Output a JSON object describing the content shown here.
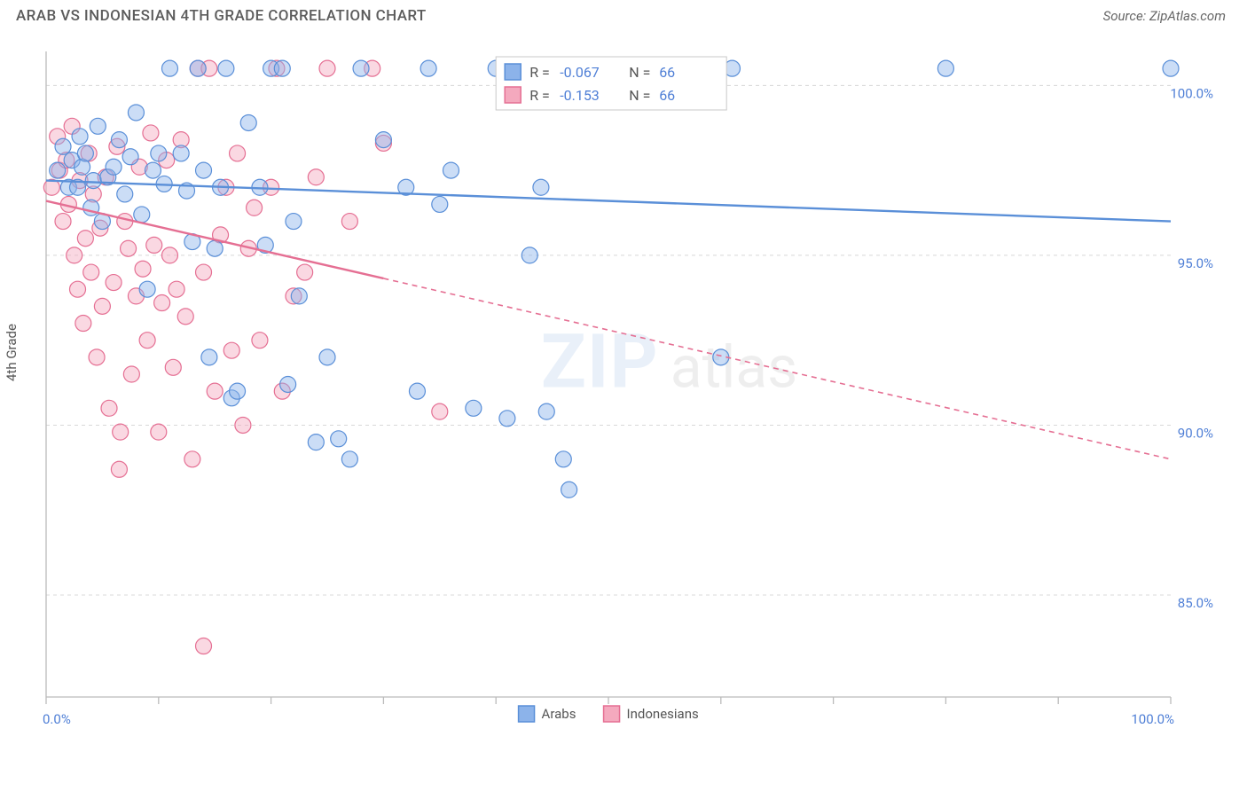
{
  "header": {
    "title": "ARAB VS INDONESIAN 4TH GRADE CORRELATION CHART",
    "source": "Source: ZipAtlas.com"
  },
  "y_axis_label": "4th Grade",
  "chart": {
    "type": "scatter",
    "xlim": [
      0,
      100
    ],
    "ylim": [
      82,
      101
    ],
    "x_ticks": [
      0,
      10,
      20,
      30,
      40,
      50,
      60,
      70,
      80,
      90,
      100
    ],
    "x_tick_labels": {
      "0": "0.0%",
      "100": "100.0%"
    },
    "y_ticks": [
      85,
      90,
      95,
      100
    ],
    "y_tick_labels": [
      "85.0%",
      "90.0%",
      "95.0%",
      "100.0%"
    ],
    "grid_color": "#d8d8d8",
    "axis_color": "#bbbbbb",
    "background_color": "#ffffff",
    "marker_radius": 9,
    "series": {
      "arabs": {
        "label": "Arabs",
        "color_fill": "#8cb3ea",
        "color_stroke": "#5a8fd8",
        "r_value": "-0.067",
        "n_value": "66",
        "trend": {
          "y_start": 97.2,
          "y_end": 96.0,
          "solid_until_x": 100
        },
        "points": [
          [
            1,
            97.5
          ],
          [
            1.5,
            98.2
          ],
          [
            2,
            97.0
          ],
          [
            2.3,
            97.8
          ],
          [
            2.8,
            97.0
          ],
          [
            3,
            98.5
          ],
          [
            3.2,
            97.6
          ],
          [
            3.5,
            98.0
          ],
          [
            4,
            96.4
          ],
          [
            4.2,
            97.2
          ],
          [
            4.6,
            98.8
          ],
          [
            5,
            96.0
          ],
          [
            5.5,
            97.3
          ],
          [
            6,
            97.6
          ],
          [
            6.5,
            98.4
          ],
          [
            7,
            96.8
          ],
          [
            7.5,
            97.9
          ],
          [
            8,
            99.2
          ],
          [
            8.5,
            96.2
          ],
          [
            9,
            94.0
          ],
          [
            9.5,
            97.5
          ],
          [
            10,
            98.0
          ],
          [
            10.5,
            97.1
          ],
          [
            11,
            100.5
          ],
          [
            12,
            98.0
          ],
          [
            12.5,
            96.9
          ],
          [
            13,
            95.4
          ],
          [
            13.5,
            100.5
          ],
          [
            14,
            97.5
          ],
          [
            14.5,
            92.0
          ],
          [
            15,
            95.2
          ],
          [
            15.5,
            97.0
          ],
          [
            16,
            100.5
          ],
          [
            16.5,
            90.8
          ],
          [
            17,
            91.0
          ],
          [
            18,
            98.9
          ],
          [
            19,
            97.0
          ],
          [
            19.5,
            95.3
          ],
          [
            20,
            100.5
          ],
          [
            21,
            100.5
          ],
          [
            21.5,
            91.2
          ],
          [
            22,
            96.0
          ],
          [
            22.5,
            93.8
          ],
          [
            24,
            89.5
          ],
          [
            25,
            92.0
          ],
          [
            26,
            89.6
          ],
          [
            27,
            89.0
          ],
          [
            28,
            100.5
          ],
          [
            30,
            98.4
          ],
          [
            32,
            97.0
          ],
          [
            33,
            91.0
          ],
          [
            34,
            100.5
          ],
          [
            35,
            96.5
          ],
          [
            36,
            97.5
          ],
          [
            38,
            90.5
          ],
          [
            40,
            100.5
          ],
          [
            41,
            90.2
          ],
          [
            43,
            95.0
          ],
          [
            44,
            97.0
          ],
          [
            44.5,
            90.4
          ],
          [
            46,
            89.0
          ],
          [
            46.5,
            88.1
          ],
          [
            60,
            92.0
          ],
          [
            61,
            100.5
          ],
          [
            80,
            100.5
          ],
          [
            100,
            100.5
          ]
        ]
      },
      "indonesians": {
        "label": "Indonesians",
        "color_fill": "#f4a9be",
        "color_stroke": "#e56f93",
        "r_value": "-0.153",
        "n_value": "66",
        "trend": {
          "y_start": 96.6,
          "y_end": 89.0,
          "solid_until_x": 30
        },
        "points": [
          [
            0.5,
            97.0
          ],
          [
            1,
            98.5
          ],
          [
            1.2,
            97.5
          ],
          [
            1.5,
            96.0
          ],
          [
            1.8,
            97.8
          ],
          [
            2,
            96.5
          ],
          [
            2.3,
            98.8
          ],
          [
            2.5,
            95.0
          ],
          [
            2.8,
            94.0
          ],
          [
            3,
            97.2
          ],
          [
            3.3,
            93.0
          ],
          [
            3.5,
            95.5
          ],
          [
            3.8,
            98.0
          ],
          [
            4,
            94.5
          ],
          [
            4.2,
            96.8
          ],
          [
            4.5,
            92.0
          ],
          [
            4.8,
            95.8
          ],
          [
            5,
            93.5
          ],
          [
            5.3,
            97.3
          ],
          [
            5.6,
            90.5
          ],
          [
            6,
            94.2
          ],
          [
            6.3,
            98.2
          ],
          [
            6.6,
            89.8
          ],
          [
            7,
            96.0
          ],
          [
            7.3,
            95.2
          ],
          [
            7.6,
            91.5
          ],
          [
            8,
            93.8
          ],
          [
            8.3,
            97.6
          ],
          [
            8.6,
            94.6
          ],
          [
            9,
            92.5
          ],
          [
            9.3,
            98.6
          ],
          [
            9.6,
            95.3
          ],
          [
            10,
            89.8
          ],
          [
            10.3,
            93.6
          ],
          [
            10.7,
            97.8
          ],
          [
            11,
            95.0
          ],
          [
            11.3,
            91.7
          ],
          [
            11.6,
            94.0
          ],
          [
            12,
            98.4
          ],
          [
            12.4,
            93.2
          ],
          [
            13,
            89.0
          ],
          [
            13.5,
            100.5
          ],
          [
            14,
            94.5
          ],
          [
            14.5,
            100.5
          ],
          [
            15,
            91.0
          ],
          [
            15.5,
            95.6
          ],
          [
            16,
            97.0
          ],
          [
            16.5,
            92.2
          ],
          [
            17,
            98.0
          ],
          [
            17.5,
            90.0
          ],
          [
            18,
            95.2
          ],
          [
            18.5,
            96.4
          ],
          [
            19,
            92.5
          ],
          [
            20,
            97.0
          ],
          [
            20.5,
            100.5
          ],
          [
            21,
            91.0
          ],
          [
            22,
            93.8
          ],
          [
            23,
            94.5
          ],
          [
            24,
            97.3
          ],
          [
            25,
            100.5
          ],
          [
            27,
            96.0
          ],
          [
            29,
            100.5
          ],
          [
            30,
            98.3
          ],
          [
            35,
            90.4
          ],
          [
            14,
            83.5
          ],
          [
            6.5,
            88.7
          ]
        ]
      }
    }
  },
  "top_legend": {
    "r_label": "R =",
    "n_label": "N ="
  },
  "watermark": {
    "zip": "ZIP",
    "atlas": "atlas"
  }
}
